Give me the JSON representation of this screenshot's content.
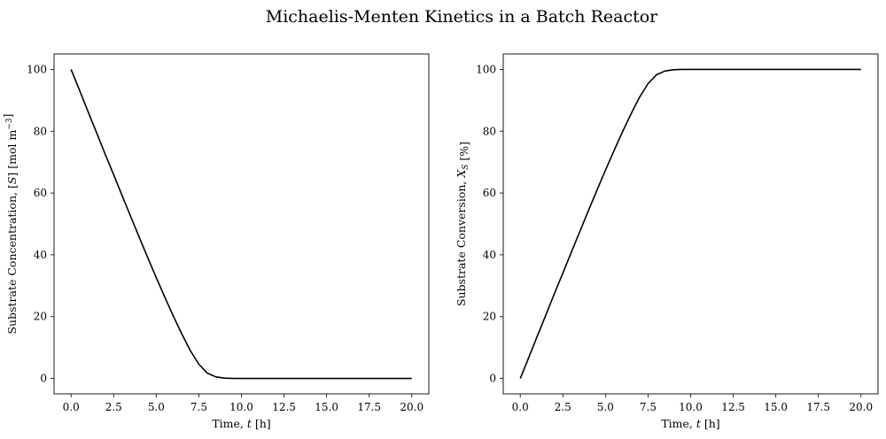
{
  "figure": {
    "title": "Michaelis-Menten Kinetics in a Batch Reactor"
  },
  "chart_data": [
    {
      "type": "line",
      "xlabel": "Time, t [h]",
      "ylabel": "Substrate Concentration, [S] [mol m−3]",
      "xlim": [
        -1.0,
        21.0
      ],
      "ylim": [
        -5.0,
        105.0
      ],
      "xticks": [
        "0.0",
        "2.5",
        "5.0",
        "7.5",
        "10.0",
        "12.5",
        "15.0",
        "17.5",
        "20.0"
      ],
      "yticks": [
        "0",
        "20",
        "40",
        "60",
        "80",
        "100"
      ],
      "grid": false,
      "series": [
        {
          "color": "#000000",
          "x": [
            0,
            0.5,
            1,
            1.5,
            2,
            2.5,
            3,
            3.5,
            4,
            4.5,
            5,
            5.5,
            6,
            6.5,
            7,
            7.5,
            8,
            8.5,
            9,
            9.5,
            10,
            11,
            12,
            13,
            14,
            15,
            16,
            17,
            18,
            19,
            20
          ],
          "y": [
            100,
            93.2,
            86.3,
            79.5,
            72.6,
            65.9,
            59.1,
            52.4,
            45.7,
            39.1,
            32.6,
            26.3,
            20.2,
            14.4,
            9.0,
            4.6,
            1.7,
            0.5,
            0.1,
            0.0,
            0.0,
            0.0,
            0.0,
            0.0,
            0.0,
            0.0,
            0.0,
            0.0,
            0.0,
            0.0,
            0.0
          ]
        }
      ]
    },
    {
      "type": "line",
      "xlabel": "Time, t [h]",
      "ylabel": "Substrate Conversion, XS [%]",
      "xlim": [
        -1.0,
        21.0
      ],
      "ylim": [
        -5.0,
        105.0
      ],
      "xticks": [
        "0.0",
        "2.5",
        "5.0",
        "7.5",
        "10.0",
        "12.5",
        "15.0",
        "17.5",
        "20.0"
      ],
      "yticks": [
        "0",
        "20",
        "40",
        "60",
        "80",
        "100"
      ],
      "grid": false,
      "series": [
        {
          "color": "#000000",
          "x": [
            0,
            0.5,
            1,
            1.5,
            2,
            2.5,
            3,
            3.5,
            4,
            4.5,
            5,
            5.5,
            6,
            6.5,
            7,
            7.5,
            8,
            8.5,
            9,
            9.5,
            10,
            11,
            12,
            13,
            14,
            15,
            16,
            17,
            18,
            19,
            20
          ],
          "y": [
            0,
            6.8,
            13.7,
            20.5,
            27.4,
            34.1,
            40.9,
            47.6,
            54.3,
            60.9,
            67.4,
            73.7,
            79.8,
            85.6,
            91.0,
            95.4,
            98.3,
            99.5,
            99.9,
            100,
            100,
            100,
            100,
            100,
            100,
            100,
            100,
            100,
            100,
            100,
            100
          ]
        }
      ]
    }
  ]
}
